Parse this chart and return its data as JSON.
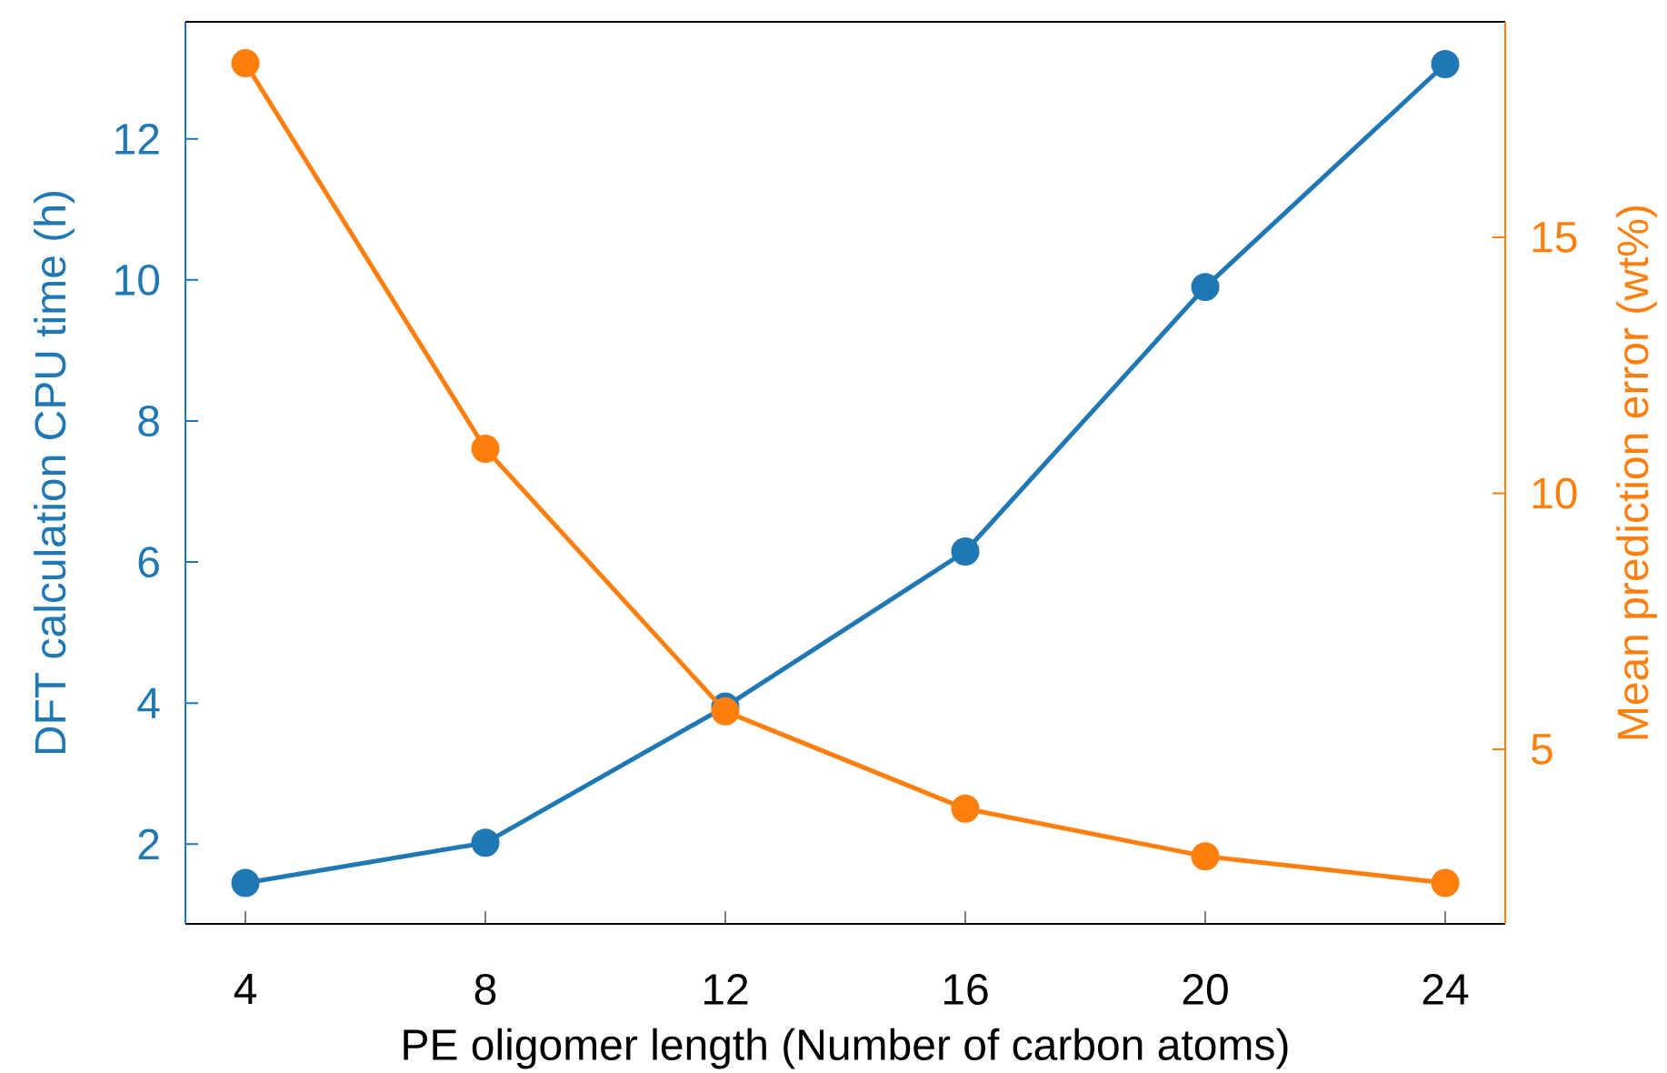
{
  "chart_data": {
    "type": "line",
    "xlabel": "PE oligomer length (Number of carbon atoms)",
    "ylabel": "DFT calculation CPU time (h)",
    "y2label": "Mean prediction error (wt%)",
    "x": [
      4,
      8,
      12,
      16,
      20,
      24
    ],
    "series": [
      {
        "color": "#1f77b4",
        "values": [
          1.45,
          2.02,
          3.95,
          6.15,
          9.9,
          13.06
        ]
      },
      {
        "color": "#ff7f0e",
        "axis": "y2",
        "values": [
          18.4,
          10.87,
          5.74,
          3.84,
          2.91,
          2.39
        ]
      }
    ],
    "xlim": [
      3,
      25
    ],
    "xticks": [
      4,
      8,
      12,
      16,
      20,
      24
    ],
    "ylim": [
      0.87,
      13.66
    ],
    "yticks": [
      2,
      4,
      6,
      8,
      10,
      12
    ],
    "y2lim": [
      1.59,
      19.21
    ],
    "y2ticks": [
      5,
      10,
      15
    ],
    "marker": "circle",
    "line_style": "solid"
  }
}
